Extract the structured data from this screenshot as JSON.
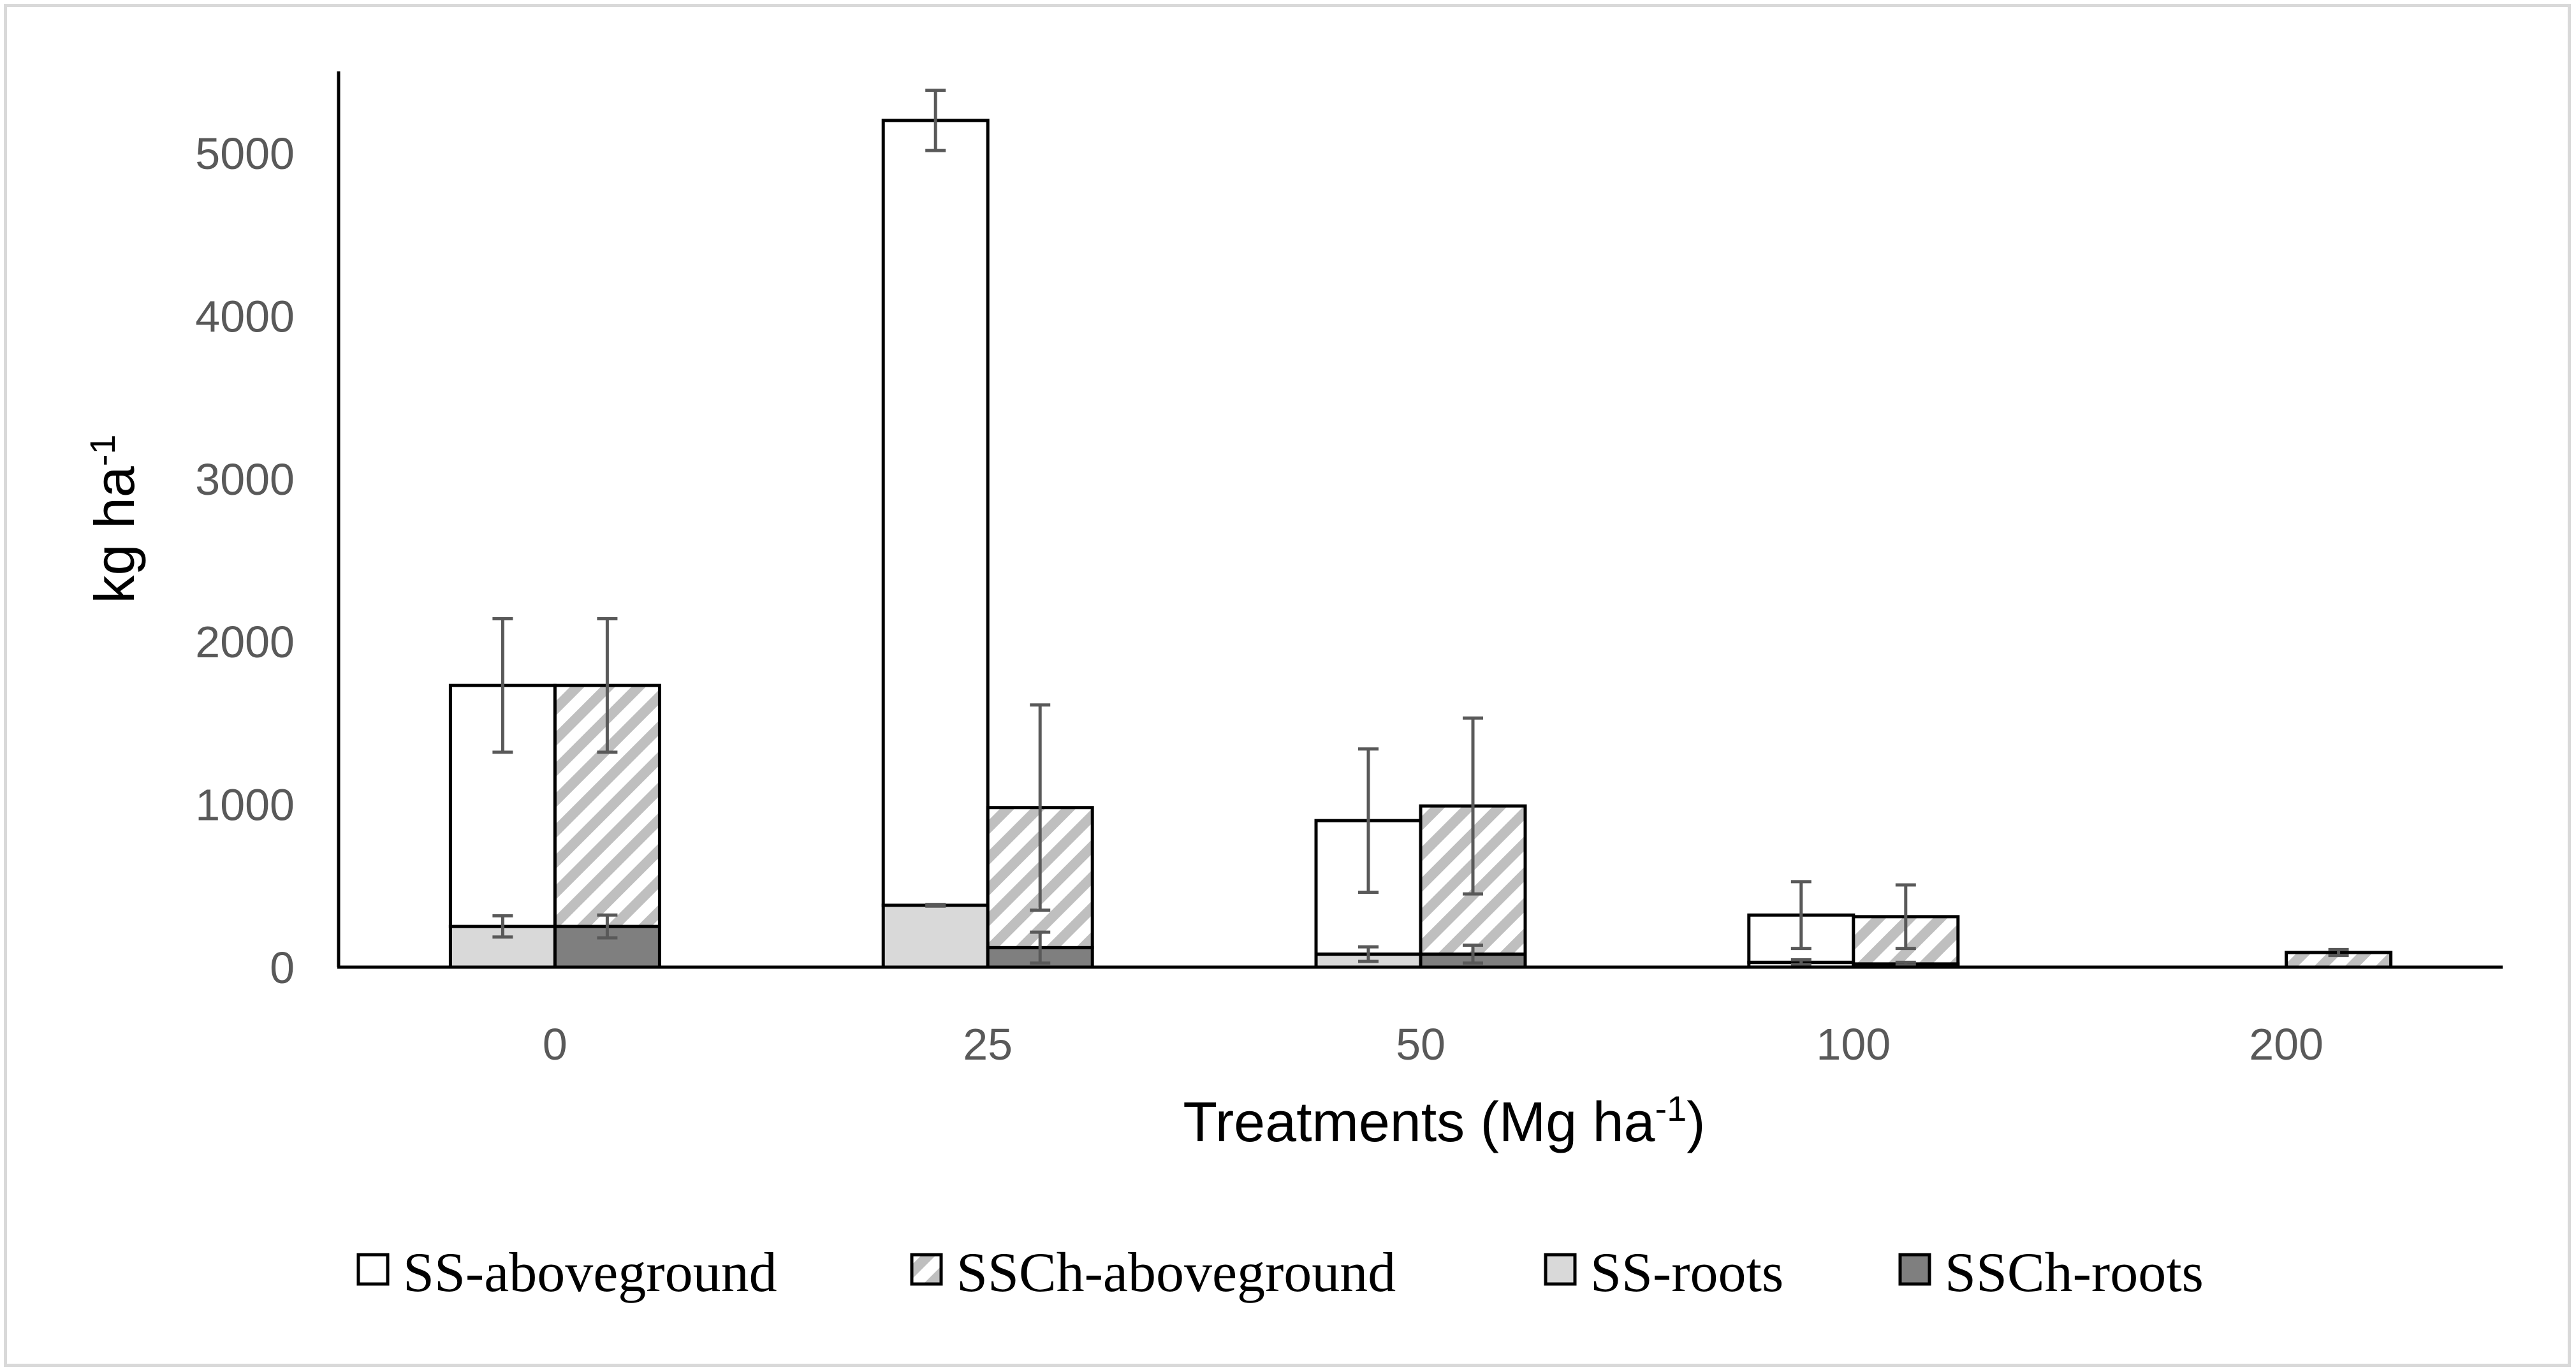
{
  "chart_data": {
    "type": "bar",
    "stacked": true,
    "title": "",
    "xlabel": "Treatments (Mg ha",
    "xlabel_sup": "-1",
    "xlabel_end": ")",
    "ylabel": "kg ha",
    "ylabel_sup": "-1",
    "ylim": [
      0,
      5500
    ],
    "yticks": [
      0,
      1000,
      2000,
      3000,
      4000,
      5000
    ],
    "categories": [
      "0",
      "25",
      "50",
      "100",
      "200"
    ],
    "stacks": [
      {
        "name": "SS",
        "components": [
          {
            "series": "SS-roots",
            "values": [
              250,
              380,
              80,
              30,
              0
            ],
            "errors": [
              65,
              5,
              45,
              15,
              0
            ]
          },
          {
            "series": "SS-aboveground",
            "values": [
              1480,
              4820,
              820,
              290,
              0
            ],
            "errors": [
              410,
              185,
              440,
              205,
              0
            ]
          }
        ]
      },
      {
        "name": "SSCh",
        "components": [
          {
            "series": "SSCh-roots",
            "values": [
              250,
              120,
              80,
              20,
              0
            ],
            "errors": [
              70,
              95,
              55,
              10,
              0
            ]
          },
          {
            "series": "SSCh-aboveground",
            "values": [
              1480,
              860,
              910,
              290,
              90
            ],
            "errors": [
              410,
              630,
              540,
              195,
              18
            ]
          }
        ]
      }
    ],
    "legend": {
      "position": "bottom",
      "entries": [
        {
          "label": "SS-aboveground",
          "style": "white"
        },
        {
          "label": "SSCh-aboveground",
          "style": "hatched"
        },
        {
          "label": "SS-roots",
          "style": "light-gray"
        },
        {
          "label": "SSCh-roots",
          "style": "dark-gray"
        }
      ]
    },
    "colors": {
      "SS-aboveground": "#ffffff",
      "SSCh-aboveground": "#bfbfbf",
      "SS-roots": "#d9d9d9",
      "SSCh-roots": "#7f7f7f",
      "outline": "#000000",
      "error_bar": "#595959"
    }
  }
}
